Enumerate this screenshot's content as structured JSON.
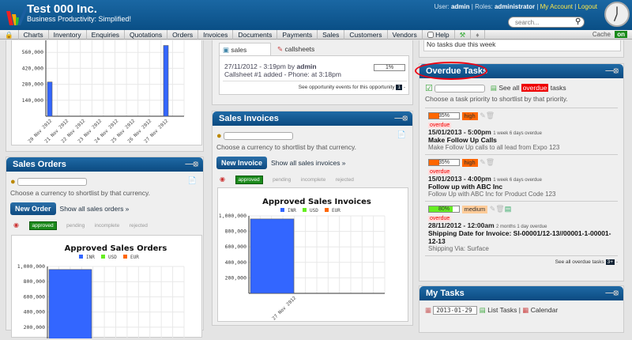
{
  "header": {
    "company": "Test 000 Inc.",
    "tagline": "Business Productivity: Simplified!",
    "user_label": "User:",
    "user": "admin",
    "roles_label": "Roles:",
    "role": "administrator",
    "my_account": "My Account",
    "logout": "Logout",
    "search_placeholder": "search..."
  },
  "nav": {
    "items": [
      "Charts",
      "Inventory",
      "Enquiries",
      "Quotations",
      "Orders",
      "Invoices",
      "Documents",
      "Payments",
      "Sales",
      "Customers",
      "Vendors",
      "Help"
    ],
    "cache_label": "Cache",
    "cache_state": "on"
  },
  "top_chart": {
    "y_ticks": [
      "560,000",
      "420,000",
      "280,000",
      "140,000"
    ],
    "x_labels": [
      "20 Nov 2012",
      "21 Nov 2012",
      "22 Nov 2012",
      "23 Nov 2012",
      "24 Nov 2012",
      "25 Nov 2012",
      "26 Nov 2012",
      "27 Nov 2012"
    ]
  },
  "sales_orders": {
    "title": "Sales Orders",
    "hint": "Choose a currency to shortlist by that currency.",
    "new_button": "New Order",
    "show_all": "Show all sales orders »",
    "tabs": [
      "approved",
      "pending",
      "incomplete",
      "rejected"
    ]
  },
  "events": {
    "tabs": [
      "sales events",
      "callsheets"
    ],
    "line1_date": "27/11/2012 - 3:19pm by",
    "line1_user": "admin",
    "line2": "Callsheet #1 added - Phone: at 3:18pm",
    "progress": "1%",
    "footer": "See opportunity events for this opportunity",
    "footer_count": "1"
  },
  "sales_invoices": {
    "title": "Sales Invoices",
    "hint": "Choose a currency to shortlist by that currency.",
    "new_button": "New Invoice",
    "show_all": "Show all sales invoices »",
    "tabs": [
      "approved",
      "pending",
      "incomplete",
      "rejected"
    ]
  },
  "top_right": {
    "text": "No tasks due this week"
  },
  "overdue": {
    "title": "Overdue Tasks",
    "see_all_prefix": "See all",
    "see_all_badge": "overdue",
    "see_all_suffix": "tasks",
    "hint": "Choose a task priority to shortlist by that priority.",
    "tasks": [
      {
        "progress_label": "35%",
        "progress": 35,
        "progress_color": "#ff6600",
        "priority": "high",
        "priority_color": "#ff6600",
        "status": "overdue",
        "date": "15/01/2013 - 5:00pm",
        "ago": "1 week 6 days overdue",
        "name": "Make Follow Up Calls",
        "desc": "Make Follow Up calls to all lead from Expo 123"
      },
      {
        "progress_label": "35%",
        "progress": 35,
        "progress_color": "#ff6600",
        "priority": "high",
        "priority_color": "#ff6600",
        "status": "overdue",
        "date": "15/01/2013 - 4:00pm",
        "ago": "1 week 6 days overdue",
        "name": "Follow up with ABC Inc",
        "desc": "Follow Up with ABC Inc for Product Code 123"
      },
      {
        "progress_label": "80%",
        "progress": 80,
        "progress_color": "#66ee22",
        "priority": "medium",
        "priority_color": "#ffcc99",
        "status": "overdue",
        "date": "28/11/2012 - 12:00am",
        "ago": "2 months 1 day overdue",
        "name": "Shipping Date for Invoice: SI-00001/12-13//00001-1-00001-12-13",
        "desc": "Shipping Via: Surface"
      }
    ],
    "footer": "See all overdue tasks",
    "footer_count": "3+"
  },
  "my_tasks": {
    "title": "My Tasks",
    "date": "2013-01-29",
    "list_tasks": "List Tasks",
    "calendar": "Calendar"
  },
  "chart_data": [
    {
      "type": "bar",
      "title": "",
      "categories": [
        "20 Nov 2012",
        "21 Nov 2012",
        "22 Nov 2012",
        "23 Nov 2012",
        "24 Nov 2012",
        "25 Nov 2012",
        "26 Nov 2012",
        "27 Nov 2012"
      ],
      "series": [
        {
          "values": [
            300000,
            0,
            0,
            0,
            0,
            0,
            0,
            620000
          ]
        }
      ],
      "ylim": [
        0,
        700000
      ],
      "color": "#3366ff",
      "grid": true
    },
    {
      "type": "bar",
      "title": "Approved Sales Orders",
      "legend": [
        "INR",
        "USD",
        "EUR"
      ],
      "legend_colors": [
        "#3366ff",
        "#66ee22",
        "#ff6600"
      ],
      "y_ticks": [
        "1,000,000",
        "800,000",
        "600,000",
        "400,000",
        "200,000"
      ],
      "series": [
        {
          "name": "INR",
          "values": [
            960000
          ]
        }
      ],
      "ylim": [
        0,
        1000000
      ],
      "grid": true,
      "legend_position": "top"
    },
    {
      "type": "bar",
      "title": "Approved Sales Invoices",
      "legend": [
        "INR",
        "USD",
        "EUR"
      ],
      "legend_colors": [
        "#3366ff",
        "#66ee22",
        "#ff6600"
      ],
      "categories": [
        "27 Nov 2012"
      ],
      "y_ticks": [
        "1,000,000",
        "800,000",
        "600,000",
        "400,000",
        "200,000"
      ],
      "series": [
        {
          "name": "INR",
          "values": [
            960000
          ]
        }
      ],
      "ylim": [
        0,
        1000000
      ],
      "grid": true,
      "legend_position": "top"
    }
  ]
}
